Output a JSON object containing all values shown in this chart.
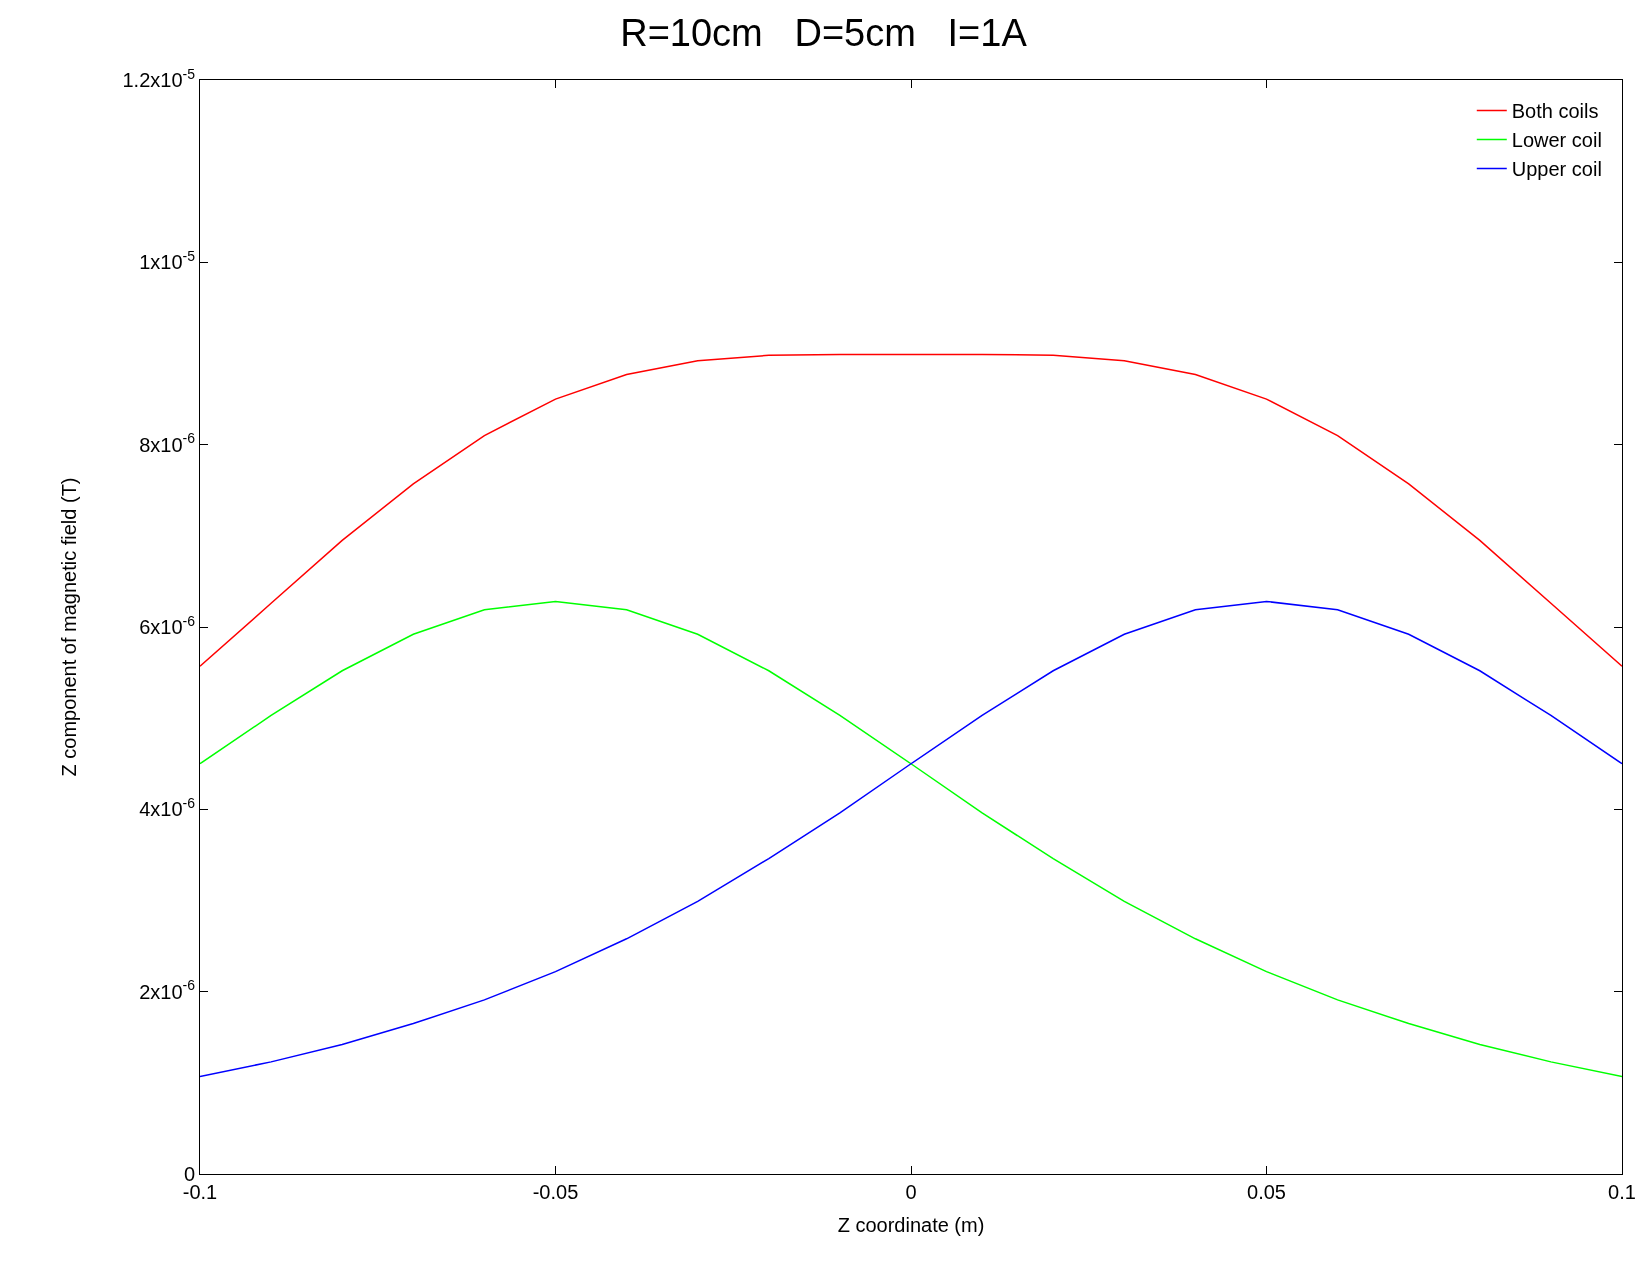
{
  "chart_data": {
    "type": "line",
    "title": "R=10cm   D=5cm   I=1A",
    "xlabel": "Z coordinate (m)",
    "ylabel": "Z component of magnetic field (T)",
    "x": [
      -0.1,
      -0.09,
      -0.08,
      -0.07,
      -0.06,
      -0.05,
      -0.04,
      -0.03,
      -0.02,
      -0.01,
      0,
      0.01,
      0.02,
      0.03,
      0.04,
      0.05,
      0.06,
      0.07,
      0.08,
      0.09,
      0.1
    ],
    "series": [
      {
        "name": "Both coils",
        "color": "#ff0000",
        "values": [
          5.57e-06,
          6.26e-06,
          6.95e-06,
          7.57e-06,
          8.1e-06,
          8.5e-06,
          8.77e-06,
          8.92e-06,
          8.98e-06,
          8.99e-06,
          8.99e-06,
          8.99e-06,
          8.98e-06,
          8.92e-06,
          8.77e-06,
          8.5e-06,
          8.1e-06,
          7.57e-06,
          6.95e-06,
          6.26e-06,
          5.57e-06
        ]
      },
      {
        "name": "Lower coil",
        "color": "#00ff00",
        "values": [
          4.5e-06,
          5.03e-06,
          5.52e-06,
          5.92e-06,
          6.19e-06,
          6.28e-06,
          6.19e-06,
          5.92e-06,
          5.52e-06,
          5.03e-06,
          4.5e-06,
          3.96e-06,
          3.46e-06,
          2.99e-06,
          2.58e-06,
          2.22e-06,
          1.91e-06,
          1.65e-06,
          1.42e-06,
          1.23e-06,
          1.07e-06
        ]
      },
      {
        "name": "Upper coil",
        "color": "#0000ff",
        "values": [
          1.07e-06,
          1.23e-06,
          1.42e-06,
          1.65e-06,
          1.91e-06,
          2.22e-06,
          2.58e-06,
          2.99e-06,
          3.46e-06,
          3.96e-06,
          4.5e-06,
          5.03e-06,
          5.52e-06,
          5.92e-06,
          6.19e-06,
          6.28e-06,
          6.19e-06,
          5.92e-06,
          5.52e-06,
          5.03e-06,
          4.5e-06
        ]
      }
    ],
    "xlim": [
      -0.1,
      0.1
    ],
    "xticks": [
      -0.1,
      -0.05,
      0,
      0.05,
      0.1
    ],
    "ylim": [
      0,
      1.2e-05
    ],
    "yticks": [
      0,
      {
        "value": 2e-06,
        "label": "2x10$^{-6}$"
      },
      {
        "value": 4e-06,
        "label": "4x10$^{-6}$"
      },
      {
        "value": 6e-06,
        "label": "6x10$^{-6}$"
      },
      {
        "value": 8e-06,
        "label": "8x10$^{-6}$"
      },
      {
        "value": 1e-05,
        "label": "1x10$^{-5}$"
      },
      {
        "value": 1.2e-05,
        "label": "1.2x10$^{-5}$"
      }
    ],
    "legend": "top right",
    "marker": "none",
    "line_style": "solid"
  }
}
